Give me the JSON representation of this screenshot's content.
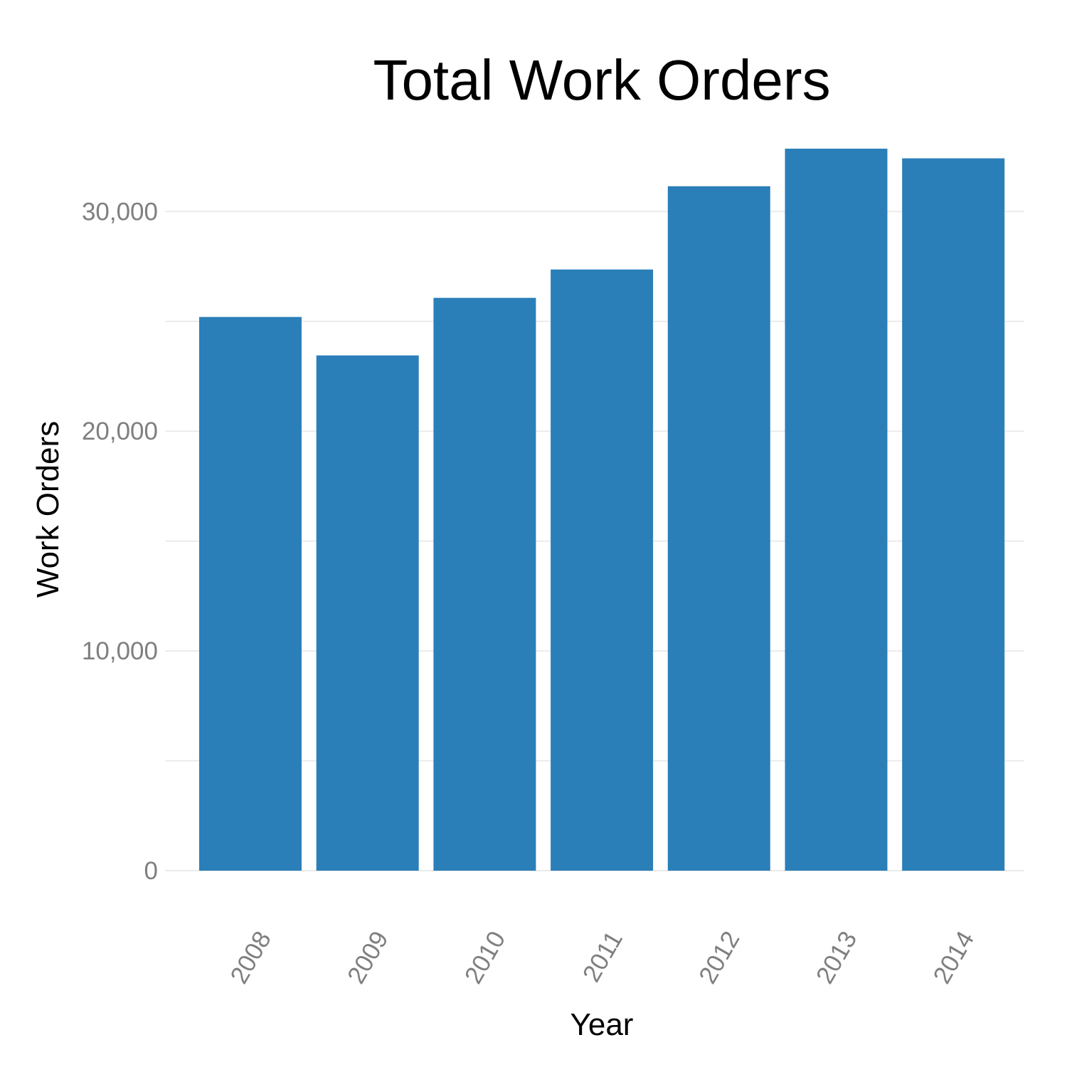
{
  "chart_data": {
    "type": "bar",
    "title": "Total Work Orders",
    "xlabel": "Year",
    "ylabel": "Work Orders",
    "categories": [
      "2008",
      "2009",
      "2010",
      "2011",
      "2012",
      "2013",
      "2014"
    ],
    "values": [
      25200,
      23450,
      26070,
      27360,
      31150,
      32860,
      32420
    ],
    "ylim": [
      0,
      32860
    ],
    "y_ticks": [
      0,
      10000,
      20000,
      30000
    ],
    "y_tick_labels": [
      "0",
      "10,000",
      "20,000",
      "30,000"
    ],
    "grid": true,
    "legend": "none",
    "bar_color": "#2b7fb8"
  }
}
